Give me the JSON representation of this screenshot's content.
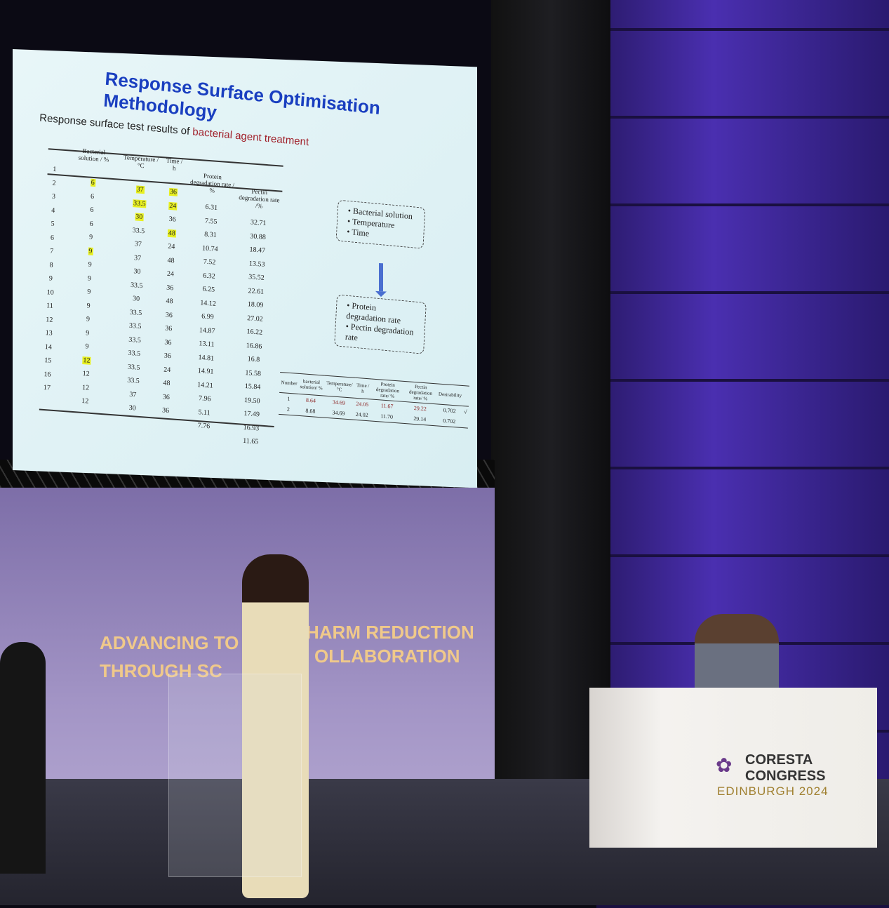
{
  "slide": {
    "title": "Response Surface Optimisation Methodology",
    "subtitle_prefix": "Response surface test results of ",
    "subtitle_highlight": "bacterial agent treatment",
    "highlight_color": "#e8f020",
    "table": {
      "headers": [
        "",
        "Bacterial solution / %",
        "Temperature / °C",
        "Time / h",
        "Protein degradation rate / %",
        "Pectin degradation rate /%"
      ],
      "number": [
        "1",
        "2",
        "3",
        "4",
        "5",
        "6",
        "7",
        "8",
        "9",
        "10",
        "11",
        "12",
        "13",
        "14",
        "15",
        "16",
        "17"
      ],
      "bacterial": [
        "6",
        "6",
        "6",
        "6",
        "9",
        "9",
        "9",
        "9",
        "9",
        "9",
        "9",
        "9",
        "9",
        "12",
        "12",
        "12",
        "12"
      ],
      "temperature": [
        "37",
        "33.5",
        "30",
        "33.5",
        "37",
        "37",
        "30",
        "33.5",
        "30",
        "33.5",
        "33.5",
        "33.5",
        "33.5",
        "33.5",
        "33.5",
        "37",
        "30"
      ],
      "time": [
        "36",
        "24",
        "36",
        "48",
        "24",
        "48",
        "24",
        "36",
        "48",
        "36",
        "36",
        "36",
        "36",
        "24",
        "48",
        "36",
        "36"
      ],
      "protein": [
        "6.31",
        "7.55",
        "8.31",
        "10.74",
        "7.52",
        "6.32",
        "6.25",
        "14.12",
        "6.99",
        "14.87",
        "13.11",
        "14.81",
        "14.91",
        "14.21",
        "7.96",
        "5.11",
        "7.76"
      ],
      "pectin": [
        "32.71",
        "30.88",
        "18.47",
        "13.53",
        "35.52",
        "22.61",
        "18.09",
        "27.02",
        "16.22",
        "16.86",
        "16.8",
        "15.58",
        "15.84",
        "19.50",
        "17.49",
        "16.93",
        "11.65"
      ]
    },
    "factors": [
      "Bacterial solution",
      "Temperature",
      "Time"
    ],
    "responses": [
      "Protein degradation rate",
      "Pectin degradation rate"
    ],
    "optimum": {
      "headers": [
        "Number",
        "bacterial solution/ %",
        "Temperature/ °C",
        "Time / h",
        "Protein degradation rate/ %",
        "Pectin degradation rate/ %",
        "Desirability",
        ""
      ],
      "rows": [
        [
          "1",
          "8.64",
          "34.69",
          "24.05",
          "11.67",
          "29.22",
          "0.702",
          "√"
        ],
        [
          "2",
          "8.68",
          "34.69",
          "24.02",
          "11.70",
          "29.14",
          "0.702",
          ""
        ]
      ]
    }
  },
  "backdrop": {
    "line1_a": "ADVANCING TO",
    "line1_b": "HARM REDUCTION",
    "line2_a": "THROUGH SC",
    "line2_b": "OLLABORATION"
  },
  "desk": {
    "logo_line1": "CORESTA",
    "logo_line2": "CONGRESS",
    "logo_line3": "EDINBURGH 2024"
  }
}
